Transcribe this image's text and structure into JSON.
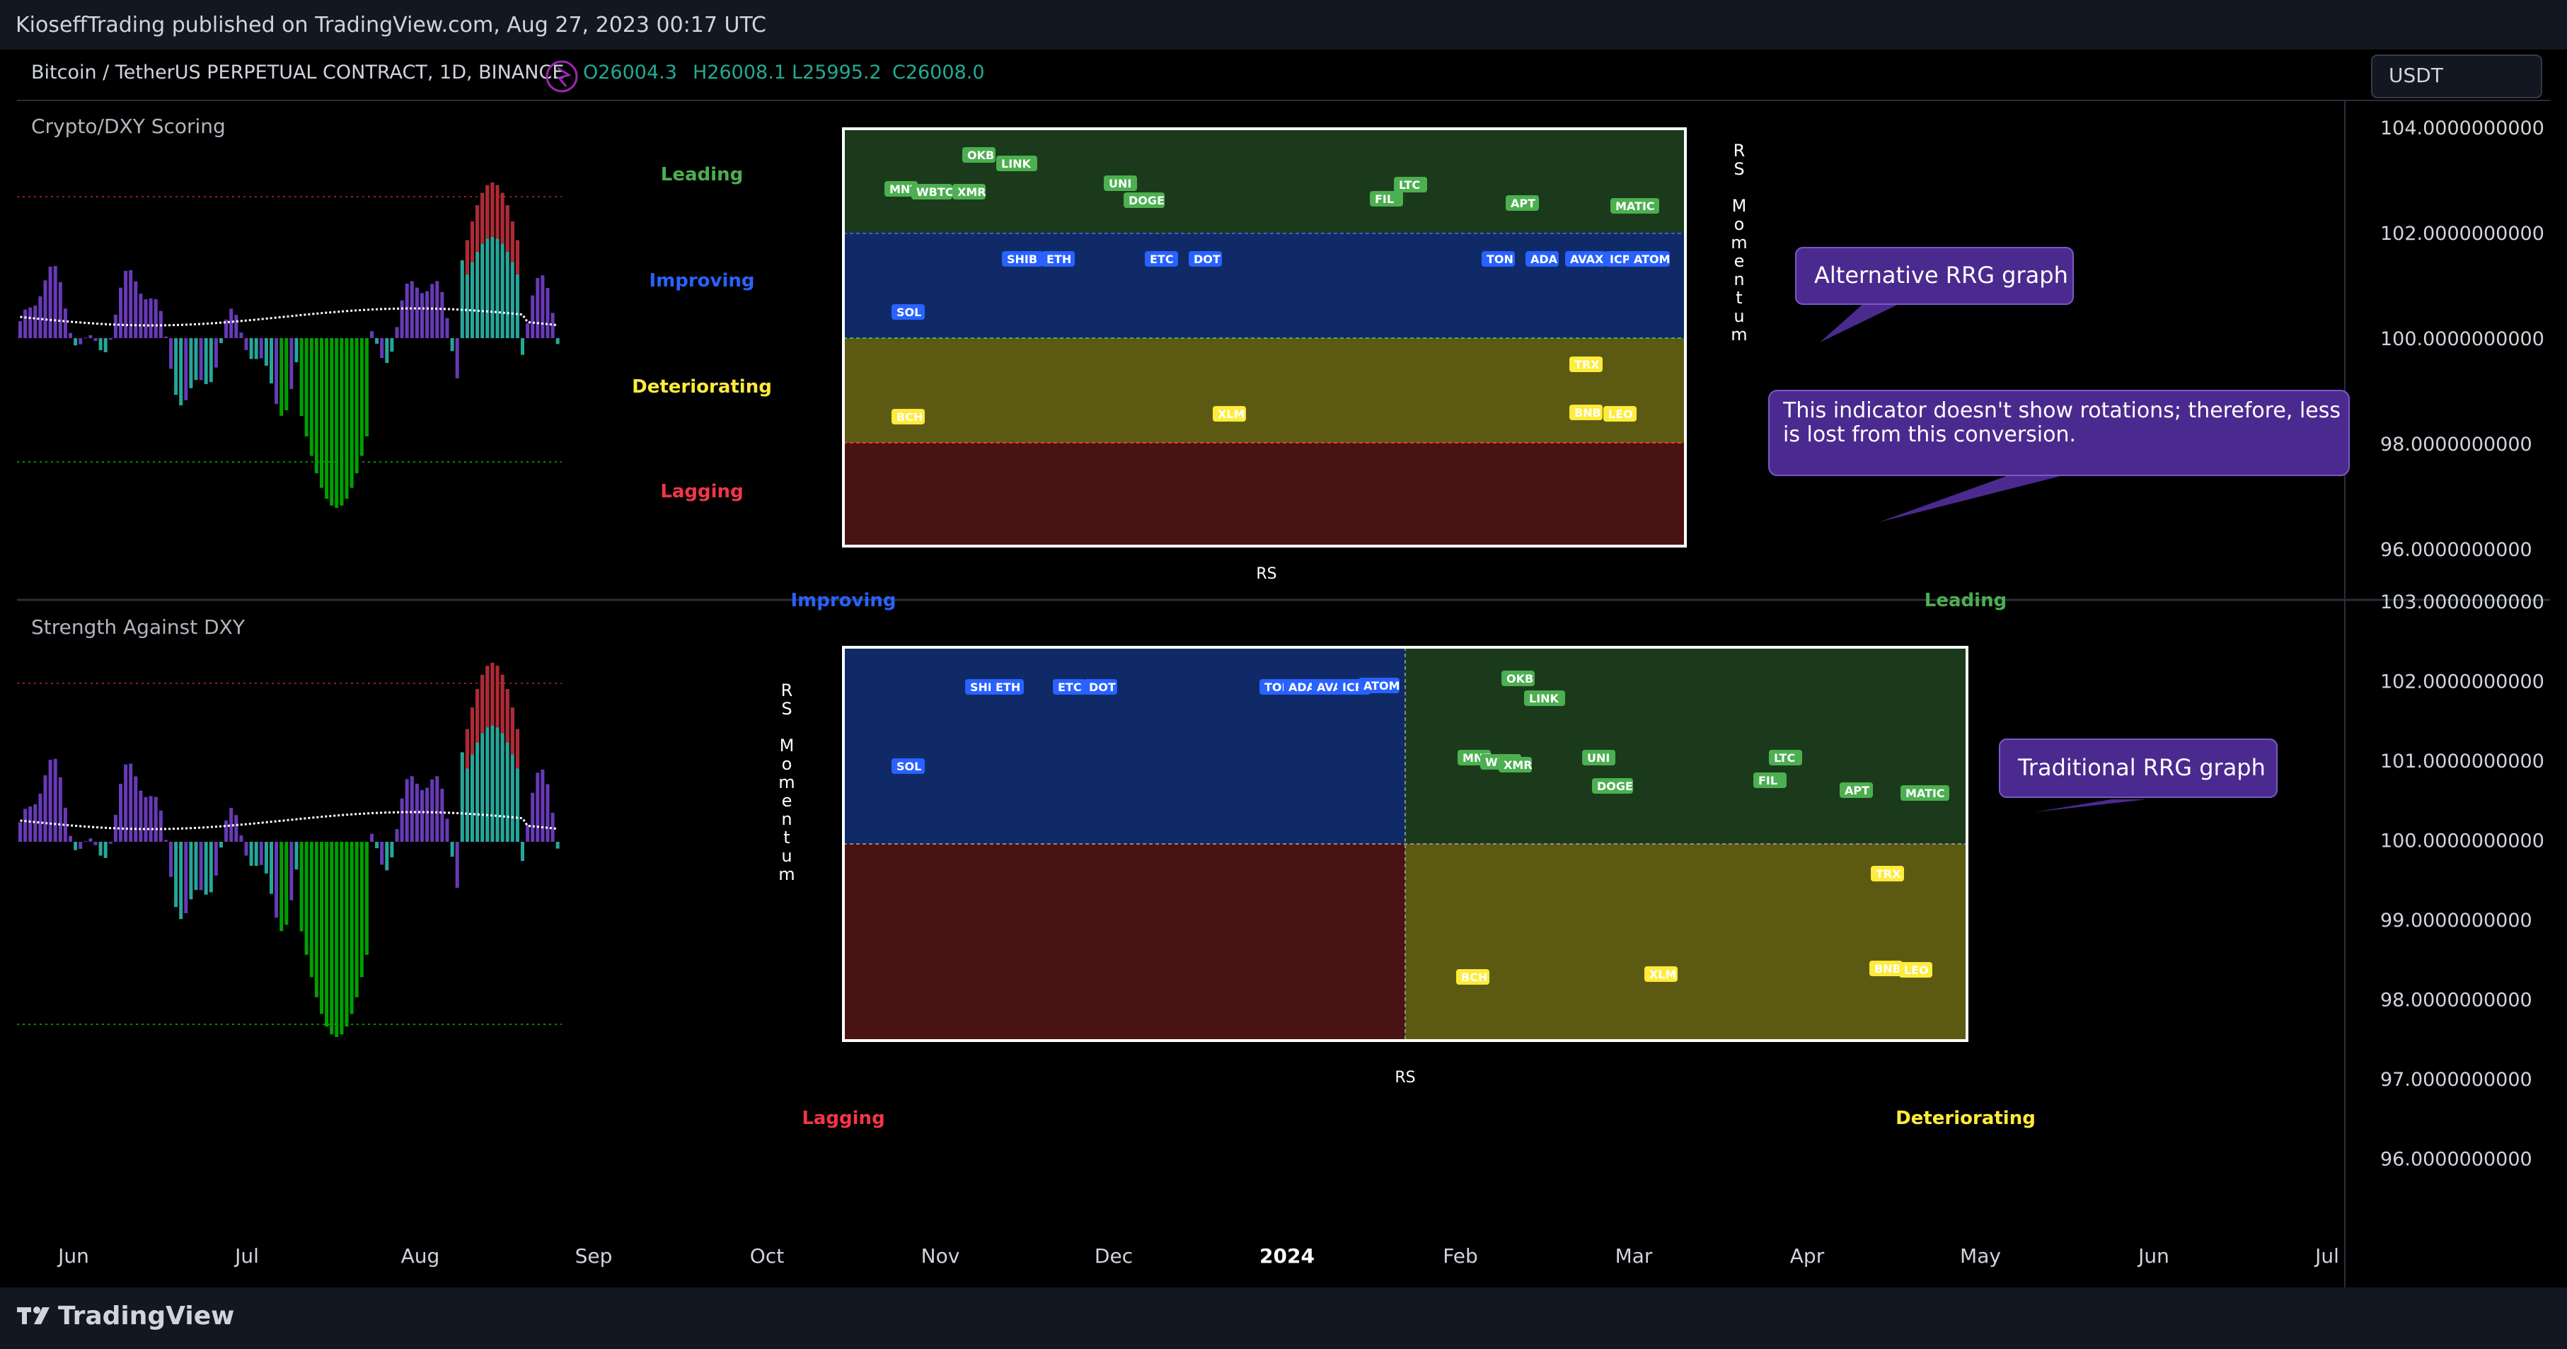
{
  "header": {
    "published": "KioseffTrading published on TradingView.com, Aug 27, 2023 00:17 UTC"
  },
  "legend": {
    "symbol": "Bitcoin / TetherUS PERPETUAL CONTRACT, 1D, BINANCE",
    "o": "O26004.3",
    "h": "H26008.1",
    "l": "L25995.2",
    "c": "C26008.0"
  },
  "currency_button": "USDT",
  "pane1": {
    "title": "Crypto/DXY Scoring",
    "quadrant_labels": [
      "Leading",
      "Improving",
      "Deteriorating",
      "Lagging"
    ],
    "axis_x_label": "RS",
    "axis_y_label": "RS Momentum",
    "price_ticks": [
      "104.0000000000",
      "102.0000000000",
      "100.0000000000",
      "98.0000000000",
      "96.0000000000"
    ],
    "callouts": [
      {
        "text": "Alternative RRG graph"
      },
      {
        "text": "This indicator doesn't show rotations; therefore, less is lost from this conversion."
      }
    ],
    "tokens": {
      "leading": [
        "MNT",
        "WBTC",
        "XMR",
        "OKB",
        "LINK",
        "UNI",
        "DOGE",
        "FIL",
        "LTC",
        "APT",
        "MATIC"
      ],
      "improving": [
        "SHIB",
        "ETH",
        "ETC",
        "DOT",
        "TON",
        "ADA",
        "AVAX",
        "ICP",
        "ATOM",
        "SOL"
      ],
      "deteriorating": [
        "TRX",
        "BCH",
        "XLM",
        "BNB",
        "LEO"
      ]
    }
  },
  "pane2": {
    "title": "Strength Against DXY",
    "quadrant_labels": [
      "Improving",
      "Leading",
      "Lagging",
      "Deteriorating"
    ],
    "axis_x_label": "RS",
    "axis_y_label": "RS Momentum",
    "price_ticks": [
      "103.0000000000",
      "102.0000000000",
      "101.0000000000",
      "100.0000000000",
      "99.0000000000",
      "98.0000000000",
      "97.0000000000",
      "96.0000000000"
    ],
    "callout": {
      "text": "Traditional RRG graph"
    },
    "tokens": {
      "improving": [
        "SHIB",
        "ETH",
        "ETC",
        "DOT",
        "TON",
        "ADA",
        "AVAX",
        "ICP",
        "ATOM",
        "SOL"
      ],
      "leading": [
        "OKB",
        "LINK",
        "MNT",
        "WBTC",
        "XMR",
        "UNI",
        "DOGE",
        "LTC",
        "FIL",
        "APT",
        "MATIC"
      ],
      "deteriorating": [
        "TRX",
        "BCH",
        "XLM",
        "BNB",
        "LEO"
      ]
    }
  },
  "time_axis": [
    "Jun",
    "Jul",
    "Aug",
    "Sep",
    "Oct",
    "Nov",
    "Dec",
    "2024",
    "Feb",
    "Mar",
    "Apr",
    "May",
    "Jun",
    "Jul"
  ],
  "footer": {
    "brand": "TradingView"
  },
  "colors": {
    "leading": "#4caf50",
    "improving": "#2962ff",
    "deteriorating": "#ffeb3b",
    "lagging": "#f23645",
    "bar_green": "#26a69a",
    "bar_purple": "#673ab7",
    "bar_red": "#b22833",
    "bar_lime": "#00c000"
  }
}
